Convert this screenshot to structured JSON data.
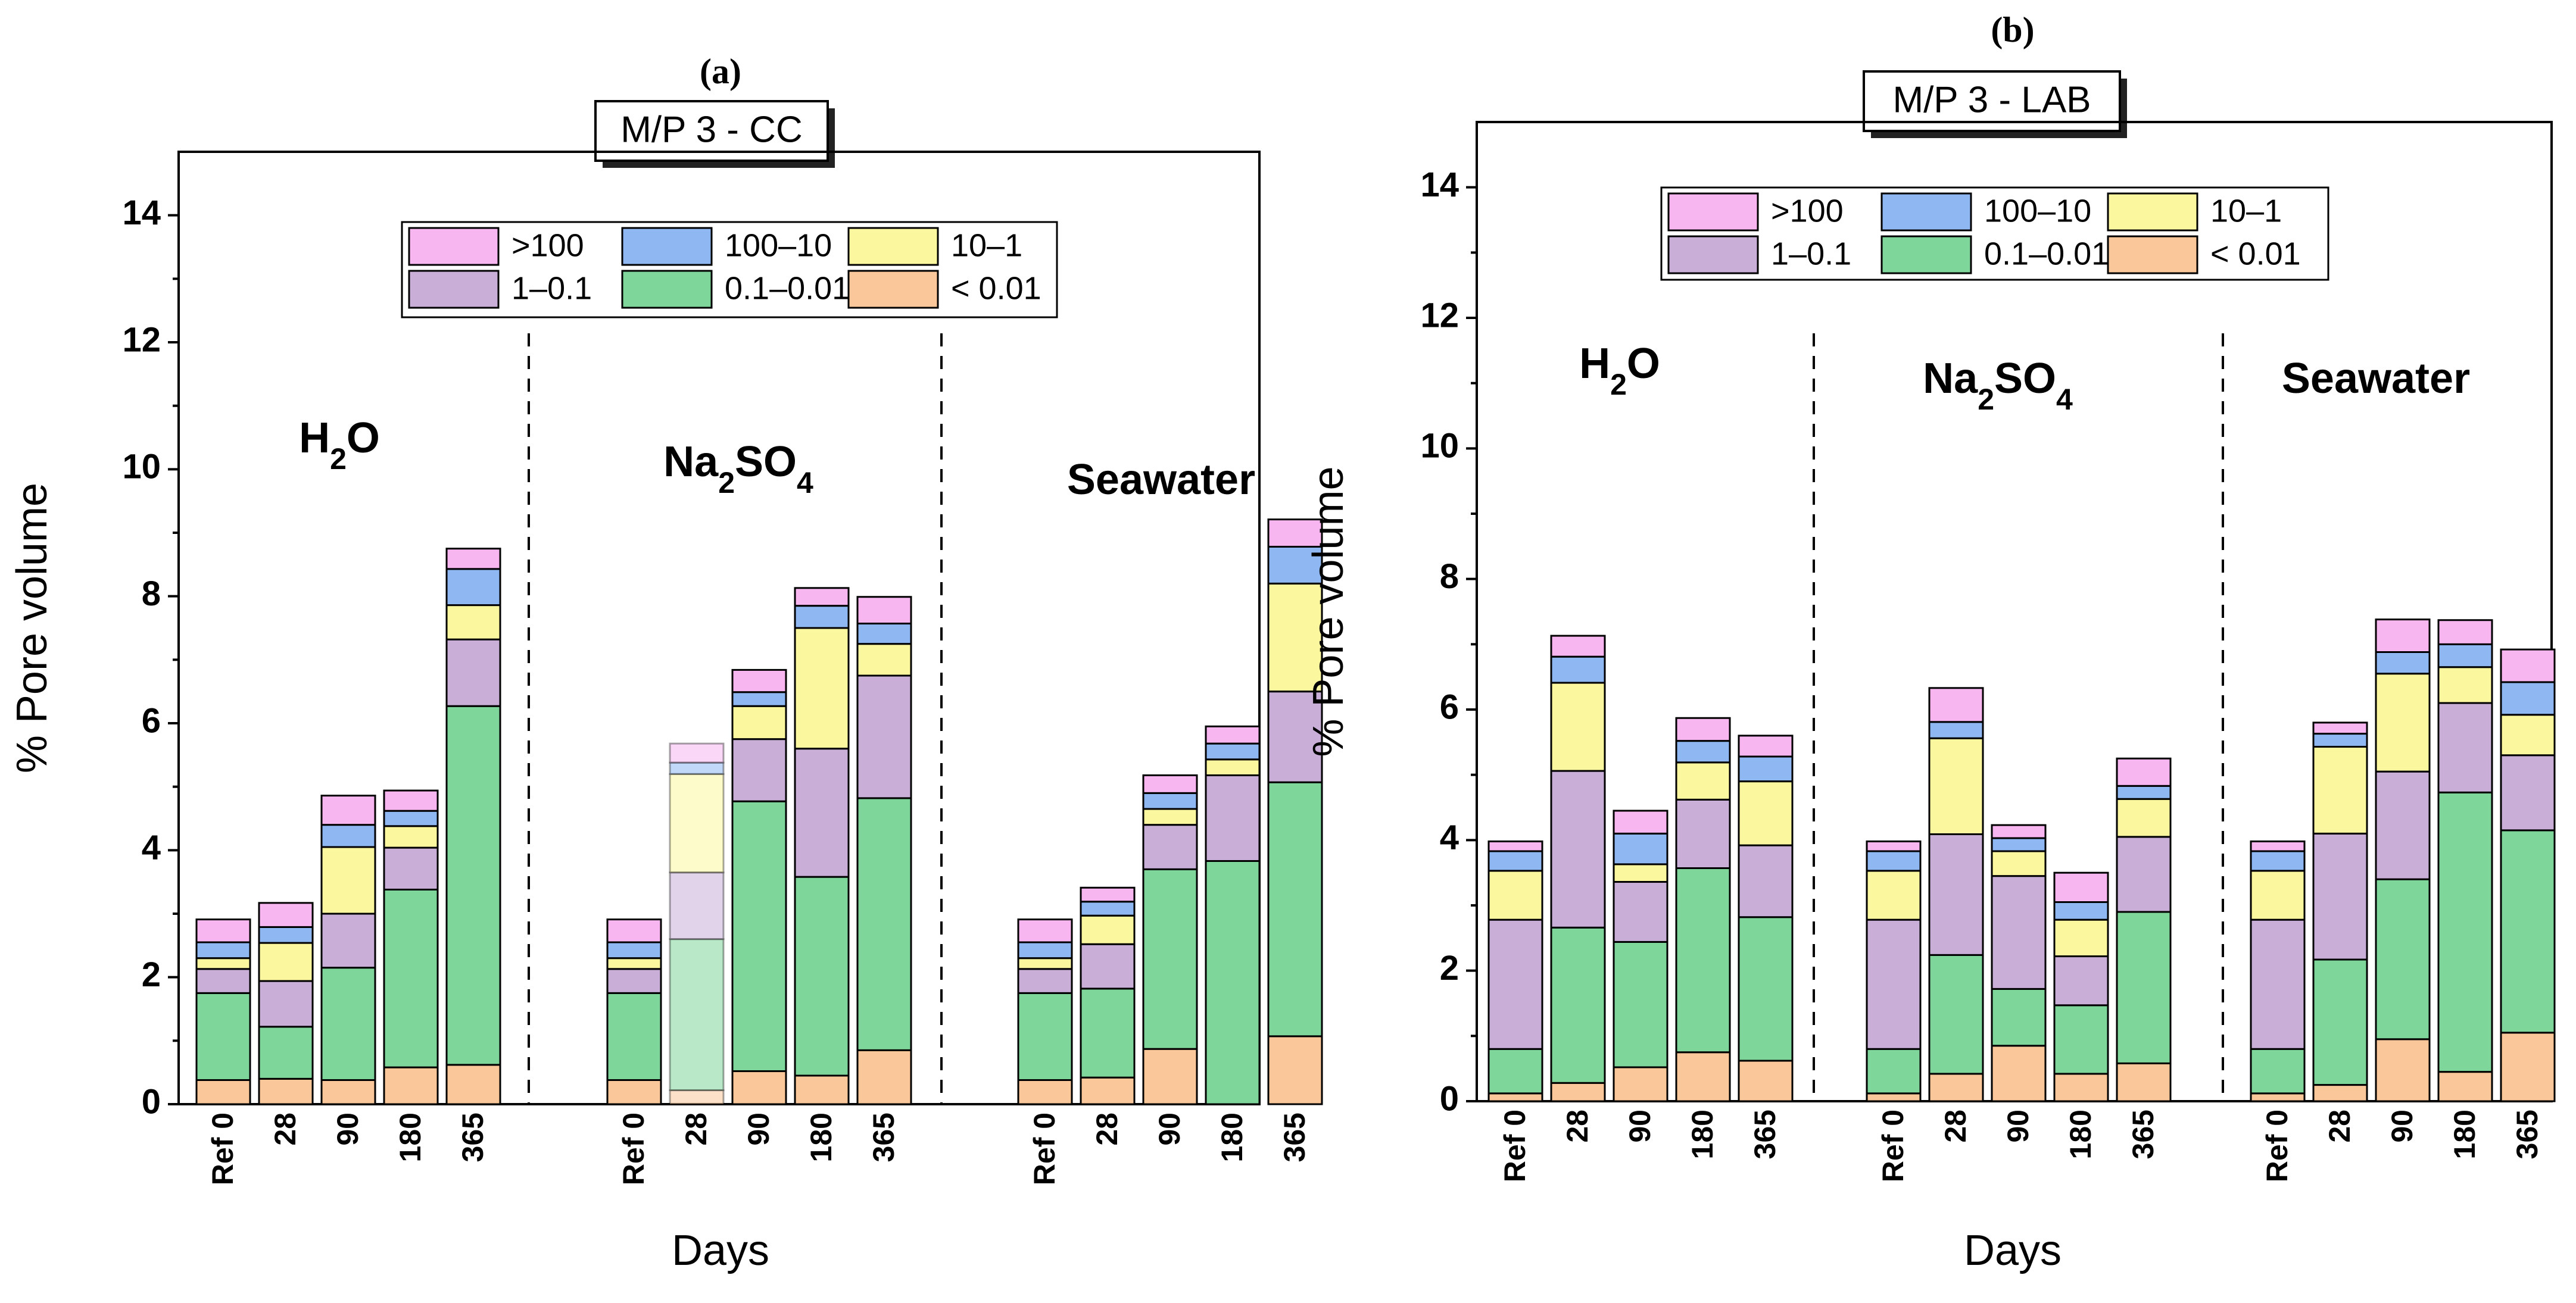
{
  "x_axis_label": "Days",
  "y_axis_label": "% Pore volume",
  "legend": [
    {
      "key": "gt100",
      "label": ">100",
      "color": "#f8b6f1"
    },
    {
      "key": "r100_10",
      "label": "100–10",
      "color": "#8fb8f2"
    },
    {
      "key": "r10_1",
      "label": "10–1",
      "color": "#fbf79f"
    },
    {
      "key": "r1_01",
      "label": "1–0.1",
      "color": "#c9aed8"
    },
    {
      "key": "r01_001",
      "label": "0.1–0.01",
      "color": "#7fd69b"
    },
    {
      "key": "lt001",
      "label": "< 0.01",
      "color": "#f9c79a"
    }
  ],
  "chart_data": [
    {
      "type": "bar",
      "stacked": true,
      "panel_letter": "(a)",
      "title": "M/P 3 - CC",
      "xlabel": "Days",
      "ylabel": "% Pore volume",
      "ylim": [
        0,
        15
      ],
      "yticks": [
        "0",
        "2",
        "4",
        "6",
        "8",
        "10",
        "12",
        "14"
      ],
      "series_order_bottom_to_top": [
        "< 0.01",
        "0.1–0.01",
        "1–0.1",
        "10–1",
        "100–10",
        ">100"
      ],
      "groups": [
        {
          "name": "H2O",
          "label_main": "H",
          "label_sub": "2",
          "label_tail": "O",
          "categories": [
            "Ref 0",
            "28",
            "90",
            "180",
            "365"
          ],
          "stacks": [
            [
              0.38,
              1.37,
              0.38,
              0.17,
              0.25,
              0.36
            ],
            [
              0.4,
              0.82,
              0.72,
              0.6,
              0.25,
              0.38
            ],
            [
              0.38,
              1.77,
              0.85,
              1.05,
              0.35,
              0.46
            ],
            [
              0.58,
              2.8,
              0.66,
              0.34,
              0.24,
              0.32
            ],
            [
              0.62,
              5.65,
              1.05,
              0.54,
              0.57,
              0.32
            ]
          ]
        },
        {
          "name": "Na2SO4",
          "label_main": "Na",
          "label_sub": "2",
          "label_tail": "SO",
          "label_sub2": "4",
          "categories": [
            "Ref 0",
            "28",
            "90",
            "180",
            "365"
          ],
          "stacks": [
            [
              0.38,
              1.37,
              0.38,
              0.17,
              0.25,
              0.36
            ],
            [
              0.22,
              2.38,
              1.05,
              1.55,
              0.18,
              0.3
            ],
            [
              0.52,
              4.25,
              0.98,
              0.52,
              0.22,
              0.35
            ],
            [
              0.45,
              3.13,
              2.02,
              1.9,
              0.35,
              0.28
            ],
            [
              0.85,
              3.97,
              1.93,
              0.5,
              0.32,
              0.42
            ]
          ],
          "faded_index": 1
        },
        {
          "name": "Seawater",
          "label_main": "Seawater",
          "categories": [
            "Ref 0",
            "28",
            "90",
            "180",
            "365"
          ],
          "stacks": [
            [
              0.38,
              1.37,
              0.38,
              0.17,
              0.25,
              0.36
            ],
            [
              0.42,
              1.4,
              0.7,
              0.45,
              0.22,
              0.22
            ],
            [
              0.87,
              2.83,
              0.7,
              0.25,
              0.25,
              0.28
            ],
            [
              0.0,
              3.83,
              1.35,
              0.25,
              0.25,
              0.27
            ],
            [
              1.07,
              4.0,
              1.43,
              1.7,
              0.58,
              0.43
            ]
          ]
        }
      ]
    },
    {
      "type": "bar",
      "stacked": true,
      "panel_letter": "(b)",
      "title": "M/P 3 - LAB",
      "xlabel": "Days",
      "ylabel": "% Pore volume",
      "ylim": [
        0,
        15
      ],
      "yticks": [
        "0",
        "2",
        "4",
        "6",
        "8",
        "10",
        "12",
        "14"
      ],
      "series_order_bottom_to_top": [
        "< 0.01",
        "0.1–0.01",
        "1–0.1",
        "10–1",
        "100–10",
        ">100"
      ],
      "groups": [
        {
          "name": "H2O",
          "label_main": "H",
          "label_sub": "2",
          "label_tail": "O",
          "categories": [
            "Ref 0",
            "28",
            "90",
            "180",
            "365"
          ],
          "stacks": [
            [
              0.12,
              0.68,
              1.98,
              0.75,
              0.3,
              0.15
            ],
            [
              0.28,
              2.38,
              2.4,
              1.35,
              0.4,
              0.32
            ],
            [
              0.52,
              1.92,
              0.92,
              0.27,
              0.47,
              0.35
            ],
            [
              0.75,
              2.82,
              1.05,
              0.57,
              0.33,
              0.35
            ],
            [
              0.62,
              2.2,
              1.1,
              0.98,
              0.38,
              0.32
            ]
          ]
        },
        {
          "name": "Na2SO4",
          "label_main": "Na",
          "label_sub": "2",
          "label_tail": "SO",
          "label_sub2": "4",
          "categories": [
            "Ref 0",
            "28",
            "90",
            "180",
            "365"
          ],
          "stacks": [
            [
              0.12,
              0.68,
              1.98,
              0.75,
              0.3,
              0.15
            ],
            [
              0.42,
              1.82,
              1.85,
              1.47,
              0.25,
              0.52
            ],
            [
              0.85,
              0.87,
              1.73,
              0.38,
              0.2,
              0.2
            ],
            [
              0.42,
              1.05,
              0.75,
              0.56,
              0.27,
              0.45
            ],
            [
              0.58,
              2.32,
              1.15,
              0.58,
              0.2,
              0.42
            ]
          ]
        },
        {
          "name": "Seawater",
          "label_main": "Seawater",
          "categories": [
            "Ref 0",
            "28",
            "90",
            "180",
            "365"
          ],
          "stacks": [
            [
              0.12,
              0.68,
              1.98,
              0.75,
              0.3,
              0.15
            ],
            [
              0.25,
              1.92,
              1.93,
              1.33,
              0.2,
              0.17
            ],
            [
              0.95,
              2.45,
              1.65,
              1.5,
              0.33,
              0.5
            ],
            [
              0.45,
              4.28,
              1.37,
              0.55,
              0.35,
              0.37
            ],
            [
              1.05,
              3.1,
              1.15,
              0.62,
              0.5,
              0.5
            ]
          ]
        }
      ]
    }
  ]
}
